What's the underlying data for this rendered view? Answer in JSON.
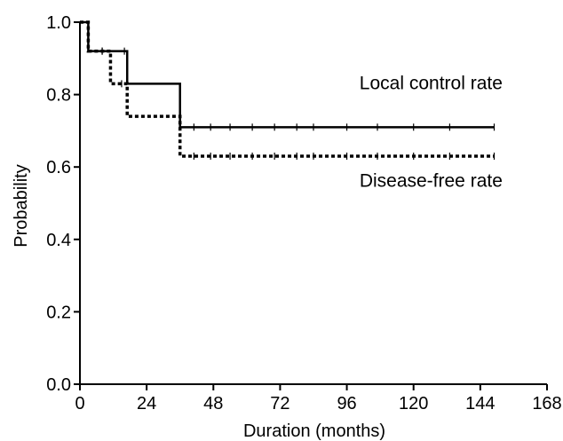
{
  "chart_data": {
    "type": "line",
    "subtype": "kaplan-meier step",
    "title": "",
    "xlabel": "Duration (months)",
    "ylabel": "Probability",
    "xlim": [
      0,
      168
    ],
    "ylim": [
      0,
      1.0
    ],
    "x_ticks": [
      0,
      24,
      48,
      72,
      96,
      120,
      144,
      168
    ],
    "y_ticks": [
      0.0,
      0.2,
      0.4,
      0.6,
      0.8,
      1.0
    ],
    "x_tick_labels": [
      "0",
      "24",
      "48",
      "72",
      "96",
      "120",
      "144",
      "168"
    ],
    "y_tick_labels": [
      "0.0",
      "0.2",
      "0.4",
      "0.6",
      "0.8",
      "1.0"
    ],
    "grid": false,
    "series": [
      {
        "name": "Local control rate",
        "line_style": "solid",
        "color": "#000000",
        "steps": [
          {
            "x": 0,
            "y": 1.0
          },
          {
            "x": 3,
            "y": 0.92
          },
          {
            "x": 17,
            "y": 0.83
          },
          {
            "x": 36,
            "y": 0.71
          }
        ],
        "end_x": 149,
        "censored_x": [
          8,
          16,
          41,
          47,
          54,
          62,
          70,
          78,
          84,
          96,
          107,
          120,
          133,
          149
        ]
      },
      {
        "name": "Disease-free rate",
        "line_style": "dotted",
        "color": "#000000",
        "steps": [
          {
            "x": 0,
            "y": 1.0
          },
          {
            "x": 3,
            "y": 0.92
          },
          {
            "x": 11,
            "y": 0.83
          },
          {
            "x": 17,
            "y": 0.74
          },
          {
            "x": 36,
            "y": 0.63
          }
        ],
        "end_x": 149,
        "censored_x": [
          8,
          15,
          41,
          47,
          54,
          62,
          70,
          78,
          84,
          96,
          107,
          120,
          133,
          149
        ]
      }
    ],
    "series_labels": [
      {
        "text": "Local control rate",
        "anchor_x": 152,
        "anchor_y": 0.815
      },
      {
        "text": "Disease-free rate",
        "anchor_x": 152,
        "anchor_y": 0.545
      }
    ]
  }
}
